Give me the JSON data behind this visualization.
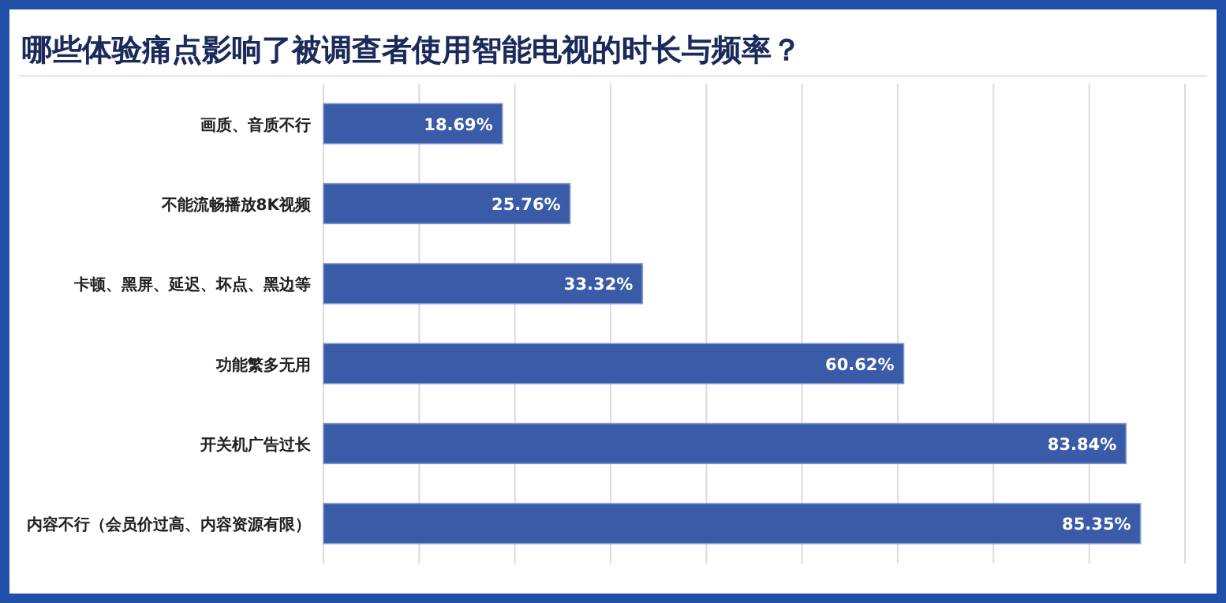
{
  "chart_data": {
    "type": "bar",
    "orientation": "horizontal",
    "title": "哪些体验痛点影响了被调查者使用智能电视的时长与频率？",
    "categories": [
      "画质、音质不行",
      "不能流畅播放8K视频",
      "卡顿、黑屏、延迟、坏点、黑边等",
      "功能繁多无用",
      "开关机广告过长",
      "内容不行（会员价过高、内容资源有限）"
    ],
    "values": [
      18.69,
      25.76,
      33.32,
      60.62,
      83.84,
      85.35
    ],
    "value_labels": [
      "18.69%",
      "25.76%",
      "33.32%",
      "60.62%",
      "83.84%",
      "85.35%"
    ],
    "color": "#3a5ba8",
    "xlim": [
      0,
      90
    ],
    "xticks": [
      {
        "value": 0,
        "label": null
      },
      {
        "value": 10,
        "label": null
      },
      {
        "value": 20,
        "label": null
      },
      {
        "value": 30,
        "label": null
      },
      {
        "value": 40,
        "label": null
      },
      {
        "value": 50,
        "label": null
      },
      {
        "value": 60,
        "label": null
      },
      {
        "value": 70,
        "label": null
      },
      {
        "value": 80,
        "label": null
      },
      {
        "value": 90,
        "label": null
      }
    ],
    "grid": "x",
    "tick_labels": "y"
  }
}
